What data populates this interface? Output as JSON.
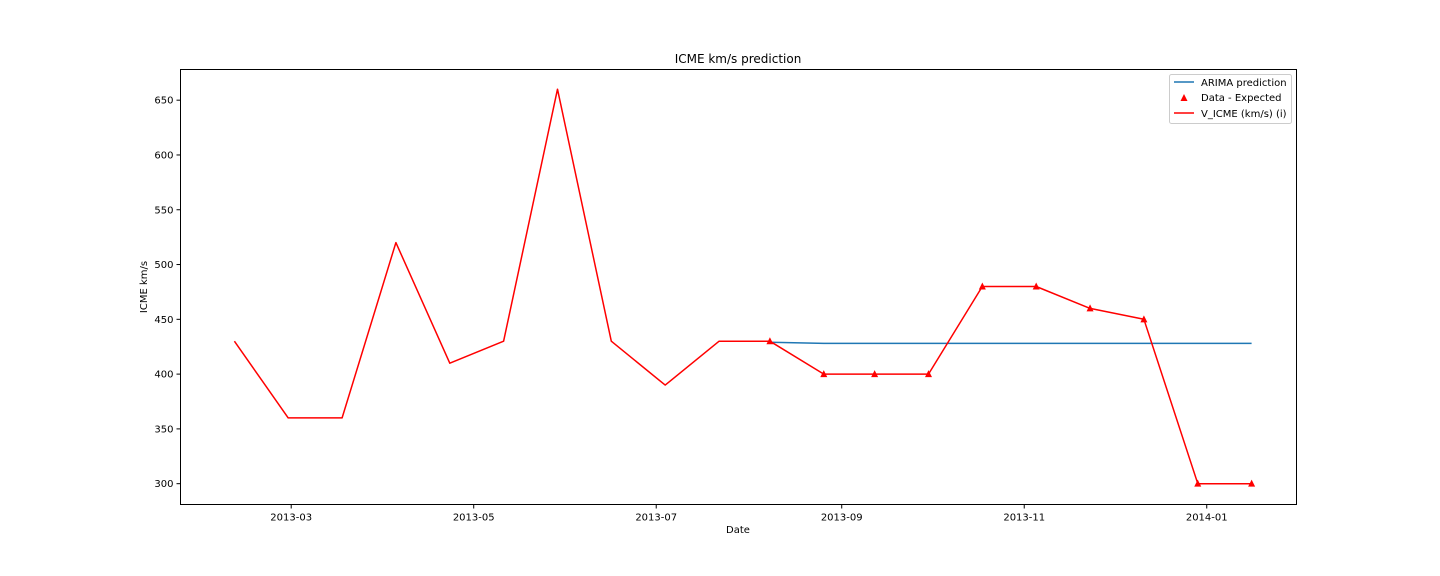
{
  "chart_data": {
    "type": "line",
    "title": "ICME km/s prediction",
    "xlabel": "Date",
    "ylabel": "ICME km/s",
    "xlim": [
      "2013-01-23",
      "2014-01-31"
    ],
    "ylim": [
      281,
      678
    ],
    "x_ticks": [
      "2013-03-01",
      "2013-05-01",
      "2013-07-01",
      "2013-09-01",
      "2013-11-01",
      "2014-01-01"
    ],
    "x_tick_labels": [
      "2013-03",
      "2013-05",
      "2013-07",
      "2013-09",
      "2013-11",
      "2014-01"
    ],
    "y_ticks": [
      300,
      350,
      400,
      450,
      500,
      550,
      600,
      650
    ],
    "grid": false,
    "legend_position": "top-right",
    "series": [
      {
        "name": "ARIMA prediction",
        "kind": "line",
        "color": "#1f77b4",
        "x": [
          "2013-08-08",
          "2013-08-26",
          "2013-09-12",
          "2013-09-30",
          "2013-10-18",
          "2013-11-05",
          "2013-11-23",
          "2013-12-11",
          "2013-12-29",
          "2014-01-16"
        ],
        "values": [
          429,
          428,
          428,
          428,
          428,
          428,
          428,
          428,
          428,
          428
        ]
      },
      {
        "name": "Data - Expected",
        "kind": "markers",
        "marker": "triangle",
        "color": "#ff0000",
        "x": [
          "2013-08-08",
          "2013-08-26",
          "2013-09-12",
          "2013-09-30",
          "2013-10-18",
          "2013-11-05",
          "2013-11-23",
          "2013-12-11",
          "2013-12-29",
          "2014-01-16"
        ],
        "values": [
          430,
          400,
          400,
          400,
          480,
          480,
          460,
          450,
          300,
          300
        ]
      },
      {
        "name": "V_ICME (km/s) (i)",
        "kind": "line",
        "color": "#ff0000",
        "x": [
          "2013-02-10",
          "2013-02-28",
          "2013-03-18",
          "2013-04-05",
          "2013-04-23",
          "2013-05-11",
          "2013-05-29",
          "2013-06-16",
          "2013-07-04",
          "2013-07-22",
          "2013-08-08",
          "2013-08-26",
          "2013-09-12",
          "2013-09-30",
          "2013-10-18",
          "2013-11-05",
          "2013-11-23",
          "2013-12-11",
          "2013-12-29",
          "2014-01-16"
        ],
        "values": [
          430,
          360,
          360,
          520,
          410,
          430,
          660,
          430,
          390,
          430,
          430,
          400,
          400,
          400,
          480,
          480,
          460,
          450,
          300,
          300
        ]
      }
    ]
  }
}
